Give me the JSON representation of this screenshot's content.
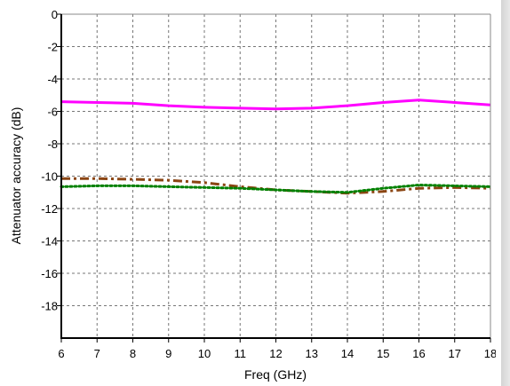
{
  "chart_data": {
    "type": "line",
    "title": "",
    "xlabel": "Freq (GHz)",
    "ylabel": "Attenuator accuracy  (dB)",
    "xlim": [
      6,
      18
    ],
    "ylim": [
      -20,
      0
    ],
    "xticks": [
      6,
      7,
      8,
      9,
      10,
      11,
      12,
      13,
      14,
      15,
      16,
      17,
      18
    ],
    "yticks": [
      0,
      -2,
      -4,
      -6,
      -8,
      -10,
      -12,
      -14,
      -16,
      -18
    ],
    "grid": true,
    "legend": "none",
    "series": [
      {
        "color": "#ff00ff",
        "style": "solid",
        "x": [
          6,
          7,
          8,
          9,
          10,
          11,
          12,
          13,
          14,
          15,
          16,
          17,
          18
        ],
        "y": [
          -5.4,
          -5.45,
          -5.5,
          -5.65,
          -5.75,
          -5.8,
          -5.85,
          -5.8,
          -5.65,
          -5.45,
          -5.3,
          -5.45,
          -5.6
        ]
      },
      {
        "color": "#8b4513",
        "style": "dashdot",
        "x": [
          6,
          7,
          8,
          9,
          10,
          11,
          12,
          13,
          14,
          15,
          16,
          17,
          18
        ],
        "y": [
          -10.15,
          -10.15,
          -10.2,
          -10.25,
          -10.4,
          -10.65,
          -10.85,
          -10.95,
          -11.05,
          -10.95,
          -10.75,
          -10.7,
          -10.75
        ]
      },
      {
        "color": "#008000",
        "style": "dotted",
        "x": [
          6,
          7,
          8,
          9,
          10,
          11,
          12,
          13,
          14,
          15,
          16,
          17,
          18
        ],
        "y": [
          -10.65,
          -10.6,
          -10.6,
          -10.65,
          -10.7,
          -10.75,
          -10.85,
          -10.95,
          -11.0,
          -10.75,
          -10.55,
          -10.6,
          -10.65
        ]
      }
    ]
  }
}
